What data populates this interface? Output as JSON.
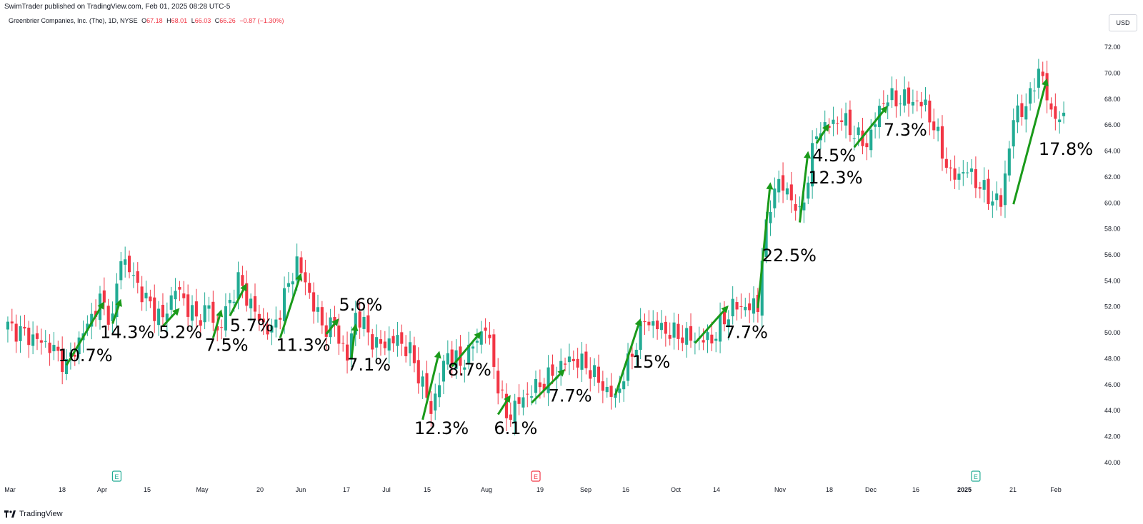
{
  "header": {
    "publish_line": "SwimTrader published on TradingView.com, Feb 01, 2025 08:28 UTC-5",
    "symbol": "Greenbrier Companies, Inc. (The), 1D, NYSE",
    "open_label": "O",
    "open": "67.18",
    "high_label": "H",
    "high": "68.01",
    "low_label": "L",
    "low": "66.03",
    "close_label": "C",
    "close": "66.26",
    "change": "−0.87 (−1.30%)",
    "currency": "USD"
  },
  "footer": {
    "brand": "TradingView",
    "logo_icon": "tradingview-logo-icon"
  },
  "colors": {
    "up": "#22ab94",
    "down": "#f23645",
    "arrow": "#1a9a1a",
    "grid": "#f0f3fa"
  },
  "chart_data": {
    "type": "candlestick",
    "ylim": [
      39,
      73
    ],
    "y_ticks": [
      "40.00",
      "42.00",
      "44.00",
      "46.00",
      "48.00",
      "50.00",
      "52.00",
      "54.00",
      "56.00",
      "58.00",
      "60.00",
      "62.00",
      "64.00",
      "66.00",
      "68.00",
      "70.00",
      "72.00"
    ],
    "x_ticks": [
      "Mar",
      "18",
      "Apr",
      "15",
      "May",
      "20",
      "Jun",
      "17",
      "Jul",
      "15",
      "Aug",
      "19",
      "Sep",
      "16",
      "Oct",
      "14",
      "Nov",
      "18",
      "Dec",
      "16",
      "2025",
      "21",
      "Feb"
    ],
    "x_ticks_bold": [
      "2025"
    ],
    "grid": false,
    "events": [
      {
        "type": "earnings",
        "label": "E",
        "date_index": 26
      },
      {
        "type": "earnings",
        "label": "E",
        "date_index": 126
      },
      {
        "type": "earnings",
        "label": "E",
        "date_index": 231
      },
      {
        "type": "earnings",
        "label": "E",
        "date_index": 293
      },
      {
        "type": "dividend",
        "label": "⚡",
        "date_index": 299
      }
    ],
    "anchors": [
      {
        "date_index": 0,
        "close": 50.5
      },
      {
        "date_index": 10,
        "close": 49.0
      },
      {
        "date_index": 14,
        "close": 47.5
      },
      {
        "date_index": 22,
        "close": 52.5
      },
      {
        "date_index": 25,
        "close": 51.0
      },
      {
        "date_index": 27,
        "close": 56.0
      },
      {
        "date_index": 33,
        "close": 52.5
      },
      {
        "date_index": 37,
        "close": 51.0
      },
      {
        "date_index": 40,
        "close": 53.5
      },
      {
        "date_index": 45,
        "close": 51.0
      },
      {
        "date_index": 48,
        "close": 52.0
      },
      {
        "date_index": 50,
        "close": 50.0
      },
      {
        "date_index": 55,
        "close": 54.0
      },
      {
        "date_index": 60,
        "close": 51.0
      },
      {
        "date_index": 63,
        "close": 50.0
      },
      {
        "date_index": 69,
        "close": 55.5
      },
      {
        "date_index": 75,
        "close": 50.5
      },
      {
        "date_index": 78,
        "close": 50.5
      },
      {
        "date_index": 81,
        "close": 48.0
      },
      {
        "date_index": 83,
        "close": 51.5
      },
      {
        "date_index": 88,
        "close": 49.0
      },
      {
        "date_index": 93,
        "close": 49.5
      },
      {
        "date_index": 96,
        "close": 48.5
      },
      {
        "date_index": 99,
        "close": 46.0
      },
      {
        "date_index": 101,
        "close": 44.0
      },
      {
        "date_index": 105,
        "close": 48.5
      },
      {
        "date_index": 108,
        "close": 47.5
      },
      {
        "date_index": 114,
        "close": 50.5
      },
      {
        "date_index": 117,
        "close": 46.0
      },
      {
        "date_index": 119,
        "close": 43.5
      },
      {
        "date_index": 123,
        "close": 45.0
      },
      {
        "date_index": 129,
        "close": 46.5
      },
      {
        "date_index": 134,
        "close": 48.0
      },
      {
        "date_index": 138,
        "close": 47.5
      },
      {
        "date_index": 143,
        "close": 45.5
      },
      {
        "date_index": 145,
        "close": 45.0
      },
      {
        "date_index": 152,
        "close": 51.0
      },
      {
        "date_index": 158,
        "close": 50.0
      },
      {
        "date_index": 164,
        "close": 49.5
      },
      {
        "date_index": 168,
        "close": 49.5
      },
      {
        "date_index": 173,
        "close": 52.0
      },
      {
        "date_index": 179,
        "close": 52.0
      },
      {
        "date_index": 180,
        "close": 56.0
      },
      {
        "date_index": 183,
        "close": 61.5
      },
      {
        "date_index": 186,
        "close": 61.0
      },
      {
        "date_index": 189,
        "close": 59.0
      },
      {
        "date_index": 191,
        "close": 62.0
      },
      {
        "date_index": 193,
        "close": 65.5
      },
      {
        "date_index": 199,
        "close": 66.5
      },
      {
        "date_index": 203,
        "close": 65.0
      },
      {
        "date_index": 205,
        "close": 64.5
      },
      {
        "date_index": 209,
        "close": 68.0
      },
      {
        "date_index": 215,
        "close": 68.0
      },
      {
        "date_index": 219,
        "close": 67.5
      },
      {
        "date_index": 222,
        "close": 65.0
      },
      {
        "date_index": 225,
        "close": 62.0
      },
      {
        "date_index": 229,
        "close": 62.5
      },
      {
        "date_index": 234,
        "close": 60.5
      },
      {
        "date_index": 237,
        "close": 60.0
      },
      {
        "date_index": 240,
        "close": 66.5
      },
      {
        "date_index": 244,
        "close": 68.0
      },
      {
        "date_index": 246,
        "close": 70.5
      },
      {
        "date_index": 249,
        "close": 67.0
      },
      {
        "date_index": 252,
        "close": 66.26
      }
    ],
    "annotations": [
      {
        "label": "10.7%",
        "from": [
          14,
          47.5
        ],
        "to": [
          23,
          52.4
        ],
        "text_at": [
          12,
          47.8
        ]
      },
      {
        "label": "14.3%",
        "from": [
          25,
          50.7
        ],
        "to": [
          27,
          52.6
        ],
        "text_at": [
          22,
          49.6
        ]
      },
      {
        "label": "5.2%",
        "from": [
          37,
          50.5
        ],
        "to": [
          41,
          51.9
        ],
        "text_at": [
          36,
          49.6
        ]
      },
      {
        "label": "7.5%",
        "from": [
          49,
          49.6
        ],
        "to": [
          51,
          51.8
        ],
        "text_at": [
          47,
          48.6
        ]
      },
      {
        "label": "5.7%",
        "from": [
          53,
          51.3
        ],
        "to": [
          57,
          53.8
        ],
        "text_at": [
          53,
          50.1
        ]
      },
      {
        "label": "11.3%",
        "from": [
          65,
          49.6
        ],
        "to": [
          70,
          54.6
        ],
        "text_at": [
          64,
          48.6
        ]
      },
      {
        "label": "5.6%",
        "from": [
          76,
          49.9
        ],
        "to": [
          79,
          51.1
        ],
        "text_at": [
          79,
          51.7
        ]
      },
      {
        "label": "7.1%",
        "from": [
          82,
          48.0
        ],
        "to": [
          83,
          50.7
        ],
        "text_at": [
          81,
          47.1
        ]
      },
      {
        "label": "12.3%",
        "from": [
          99,
          43.3
        ],
        "to": [
          103,
          48.6
        ],
        "text_at": [
          97,
          42.2
        ]
      },
      {
        "label": "8.7%",
        "from": [
          106,
          47.4
        ],
        "to": [
          113,
          50.1
        ],
        "text_at": [
          105,
          46.7
        ]
      },
      {
        "label": "6.1%",
        "from": [
          117,
          43.7
        ],
        "to": [
          120,
          45.2
        ],
        "text_at": [
          116,
          42.2
        ]
      },
      {
        "label": "7.7%",
        "from": [
          125,
          44.6
        ],
        "to": [
          133,
          47.2
        ],
        "text_at": [
          129,
          44.7
        ]
      },
      {
        "label": "15%",
        "from": [
          145,
          45.2
        ],
        "to": [
          151,
          51.1
        ],
        "text_at": [
          149,
          47.3
        ]
      },
      {
        "label": "7.7%",
        "from": [
          164,
          49.2
        ],
        "to": [
          172,
          52.1
        ],
        "text_at": [
          171,
          49.6
        ]
      },
      {
        "label": "22.5%",
        "from": [
          179,
          51.9
        ],
        "to": [
          182,
          61.6
        ],
        "text_at": [
          180,
          55.5
        ]
      },
      {
        "label": "12.3%",
        "from": [
          189,
          58.5
        ],
        "to": [
          191,
          64.0
        ],
        "text_at": [
          191,
          61.5
        ]
      },
      {
        "label": "4.5%",
        "from": [
          193,
          64.6
        ],
        "to": [
          196,
          66.1
        ],
        "text_at": [
          192,
          63.2
        ]
      },
      {
        "label": "7.3%",
        "from": [
          202,
          64.3
        ],
        "to": [
          210,
          67.5
        ],
        "text_at": [
          209,
          65.2
        ]
      },
      {
        "label": "17.8%",
        "from": [
          240,
          59.9
        ],
        "to": [
          248,
          69.6
        ],
        "text_at": [
          246,
          63.7
        ]
      }
    ]
  }
}
